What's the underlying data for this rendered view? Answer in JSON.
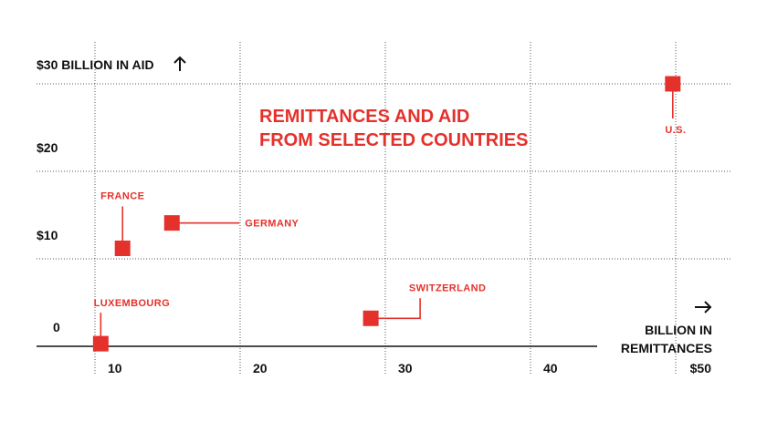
{
  "colors": {
    "accent": "#e5312b",
    "ink": "#111111",
    "grid": "#555555"
  },
  "chart_data": {
    "type": "scatter",
    "title_lines": [
      "REMITTANCES AND AID",
      "FROM SELECTED COUNTRIES"
    ],
    "x_axis": {
      "label_lines": [
        "BILLION IN",
        "REMITTANCES"
      ],
      "ticks": [
        10,
        20,
        30,
        40,
        50
      ],
      "tick_labels": [
        "10",
        "20",
        "30",
        "40",
        "$50"
      ],
      "arrow": "right-arrow"
    },
    "y_axis": {
      "ticks": [
        0,
        10,
        20,
        30
      ],
      "tick_labels": [
        "0",
        "$10",
        "$20",
        "$30 BILLION IN AID"
      ],
      "arrow": "up-arrow"
    },
    "xlim": [
      4,
      54
    ],
    "ylim": [
      -2,
      31
    ],
    "grid": true,
    "points": [
      {
        "label": "U.S.",
        "x": 49.8,
        "y": 30.0
      },
      {
        "label": "FRANCE",
        "x": 11.9,
        "y": 11.2
      },
      {
        "label": "GERMANY",
        "x": 15.3,
        "y": 14.1
      },
      {
        "label": "LUXEMBOURG",
        "x": 10.4,
        "y": 0.3
      },
      {
        "label": "SWITZERLAND",
        "x": 29.0,
        "y": 3.2
      }
    ]
  }
}
